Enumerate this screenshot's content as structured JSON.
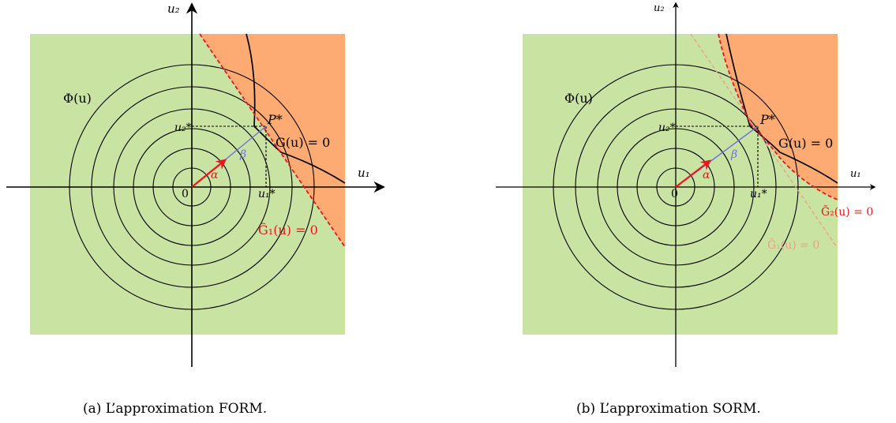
{
  "figures": [
    {
      "id": "a",
      "axis_x": "u₁",
      "axis_y": "u₂",
      "origin": "0",
      "phi": "Φ(u)",
      "point": "P*",
      "u1_star": "u₁*",
      "u2_star": "u₂*",
      "alpha": "α",
      "beta": "β",
      "limit_state": "G(u) = 0",
      "approximations": [
        {
          "text": "G̃₁(u) = 0",
          "color": "#e8171f"
        }
      ],
      "caption": "(a)  L’approximation FORM."
    },
    {
      "id": "b",
      "axis_x": "u₁",
      "axis_y": "u₂",
      "origin": "0",
      "phi": "Φ(u)",
      "point": "P*",
      "u1_star": "u₁*",
      "u2_star": "u₂*",
      "alpha": "α",
      "beta": "β",
      "limit_state": "G(u) = 0",
      "approximations": [
        {
          "text": "G̃₂(u) = 0",
          "color": "#e8171f"
        },
        {
          "text": "G̃₁(u) = 0",
          "color": "#e8a08a"
        }
      ],
      "caption": "(b)  L’approximation SORM."
    }
  ],
  "colors": {
    "safe_region": "#c9e4a2",
    "failure_region": "#fdab72",
    "form_line": "#e8171f",
    "sorm_faded_line": "#e8a08a",
    "alpha_arrow": "#e8171f",
    "beta_line": "#6f6fe0"
  }
}
